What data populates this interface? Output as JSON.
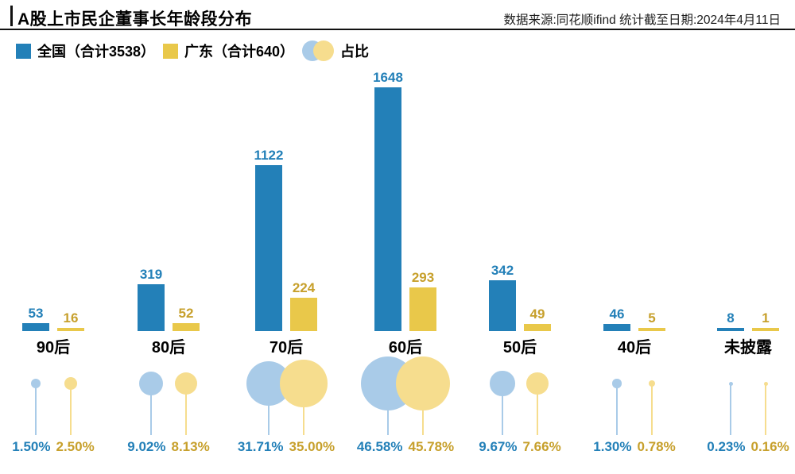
{
  "header": {
    "title": "A股上市民企董事长年龄段分布",
    "source": "数据来源:同花顺ifind  统计截至日期:2024年4月11日"
  },
  "legend": {
    "items": [
      {
        "label": "全国（合计3538）"
      },
      {
        "label": "广东（合计640）"
      },
      {
        "label": "占比"
      }
    ]
  },
  "colors": {
    "national": "#2380b8",
    "guangdong": "#e9c84a",
    "national_light": "#a9cbe8",
    "guangdong_light": "#f6dd8e",
    "guangdong_text": "#c7a02c",
    "rule": "#111111"
  },
  "chart_data": {
    "type": "bar",
    "title": "A股上市民企董事长年龄段分布",
    "subtitle": "数据来源:同花顺ifind  统计截至日期:2024年4月11日",
    "categories": [
      "90后",
      "80后",
      "70后",
      "60后",
      "50后",
      "40后",
      "未披露"
    ],
    "series": [
      {
        "name": "全国（合计3538）",
        "total": 3538,
        "values": [
          53,
          319,
          1122,
          1648,
          342,
          46,
          8
        ]
      },
      {
        "name": "广东（合计640）",
        "total": 640,
        "values": [
          16,
          52,
          224,
          293,
          49,
          5,
          1
        ]
      }
    ],
    "share_series": [
      {
        "name": "全国占比",
        "values_pct": [
          1.5,
          9.02,
          31.71,
          46.58,
          9.67,
          1.3,
          0.23
        ]
      },
      {
        "name": "广东占比",
        "values_pct": [
          2.5,
          8.13,
          35.0,
          45.78,
          7.66,
          0.78,
          0.16
        ]
      }
    ],
    "share_labels": [
      [
        "1.50%",
        "2.50%"
      ],
      [
        "9.02%",
        "8.13%"
      ],
      [
        "31.71%",
        "35.00%"
      ],
      [
        "46.58%",
        "45.78%"
      ],
      [
        "9.67%",
        "7.66%"
      ],
      [
        "1.30%",
        "0.78%"
      ],
      [
        "0.23%",
        "0.16%"
      ]
    ],
    "legend_position": "top",
    "grid": false,
    "ylim": [
      0,
      1700
    ],
    "bar_labels_shown": true
  }
}
